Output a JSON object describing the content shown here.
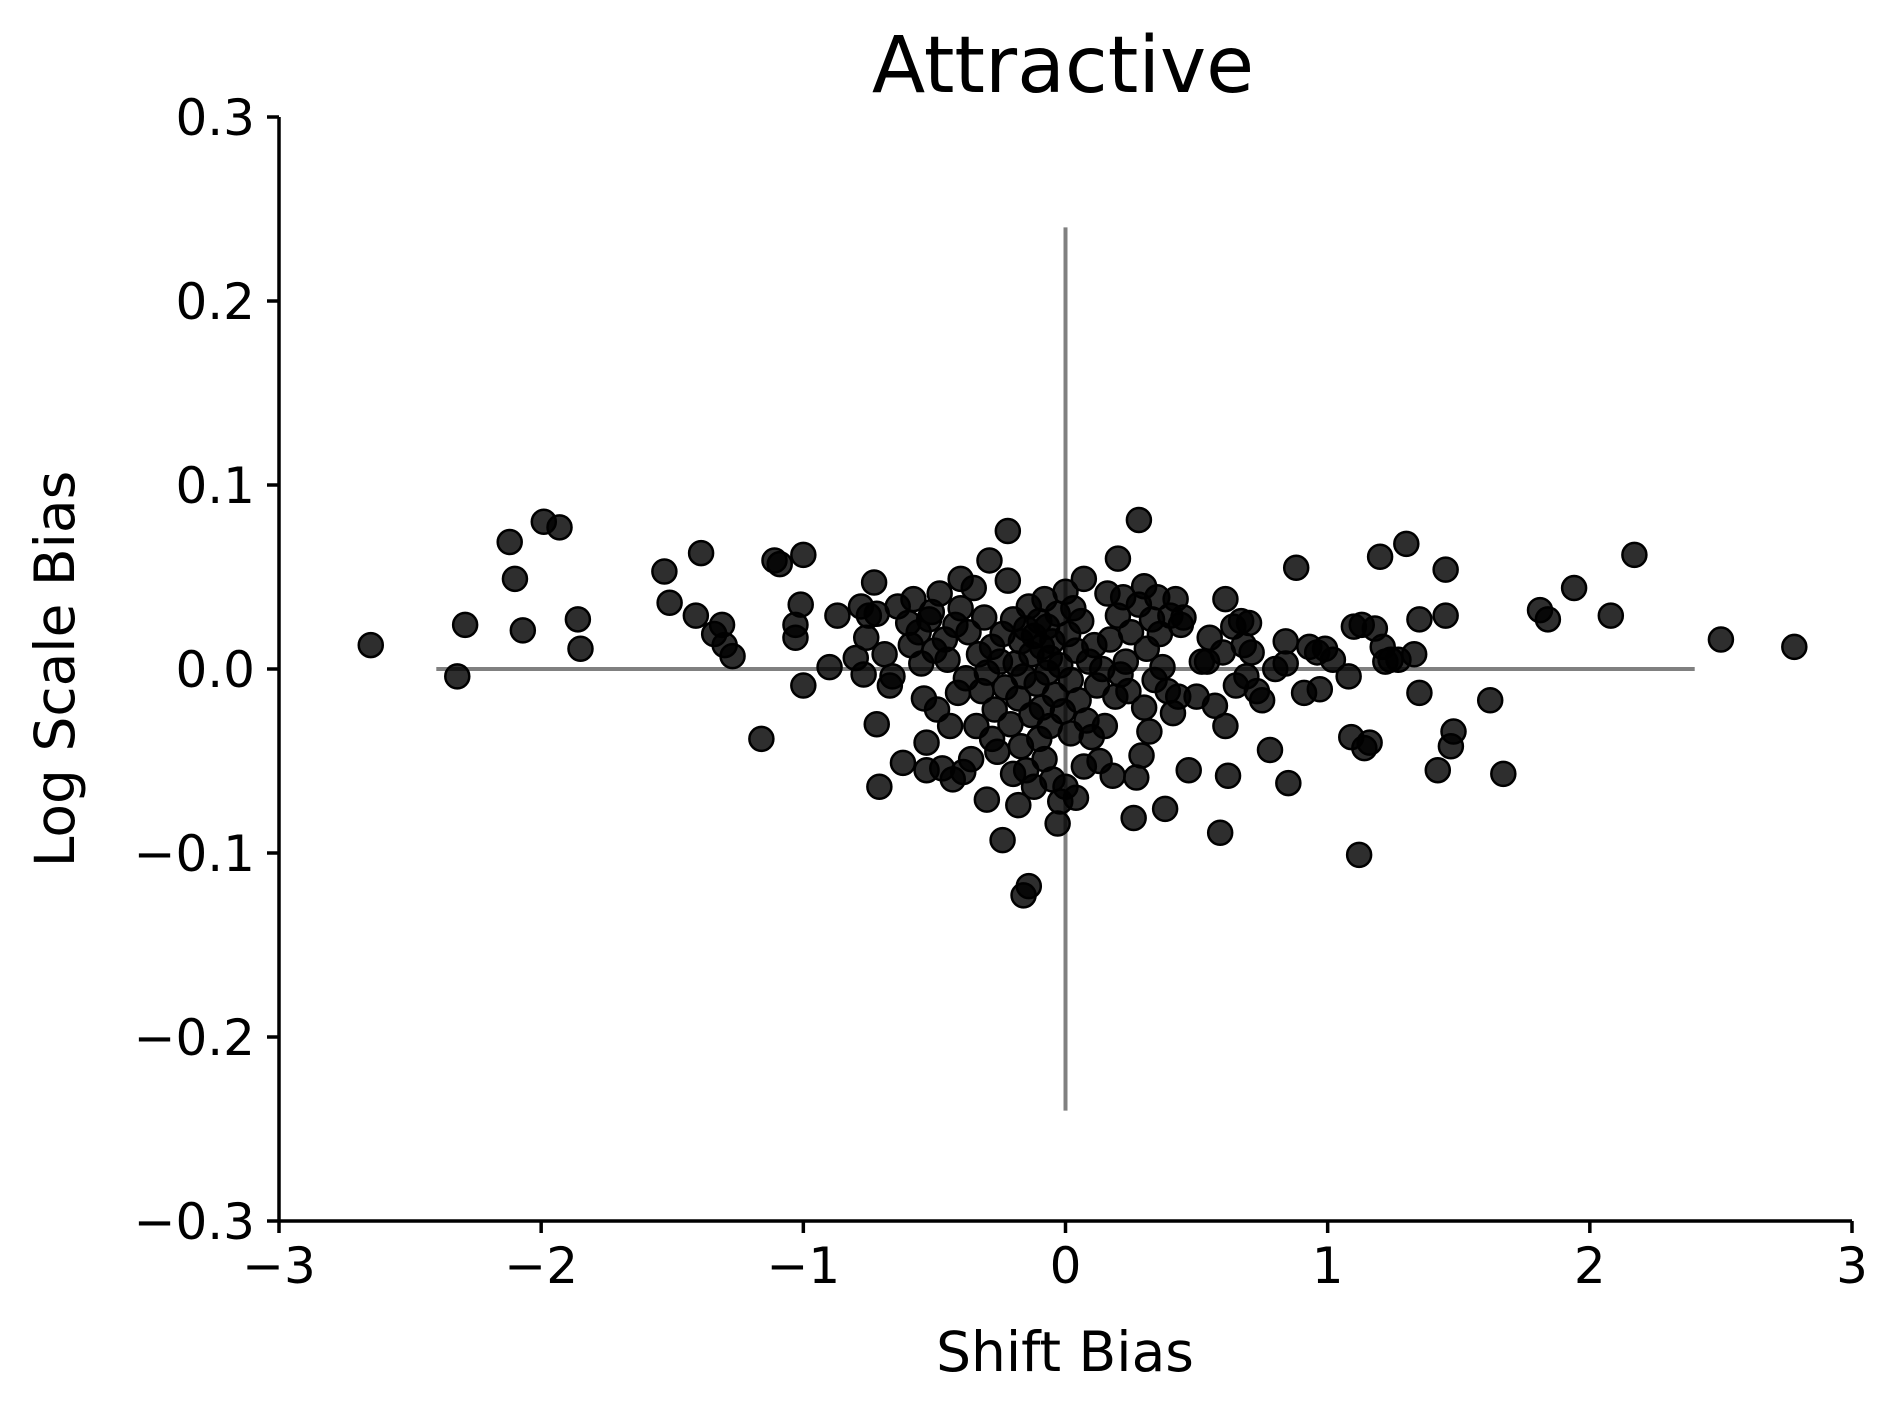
{
  "chart_data": {
    "type": "scatter",
    "title": "Attractive",
    "xlabel": "Shift Bias",
    "ylabel": "Log Scale Bias",
    "xlim": [
      -3,
      3
    ],
    "ylim": [
      -0.3,
      0.3
    ],
    "xticks": [
      -3,
      -2,
      -1,
      0,
      1,
      2,
      3
    ],
    "yticks": [
      -0.3,
      -0.2,
      -0.1,
      0.0,
      0.1,
      0.2,
      0.3
    ],
    "xtick_labels": [
      "−3",
      "−2",
      "−1",
      "0",
      "1",
      "2",
      "3"
    ],
    "ytick_labels": [
      "−0.3",
      "−0.2",
      "−0.1",
      "0.0",
      "0.1",
      "0.2",
      "0.3"
    ],
    "grid": false,
    "reference_lines": {
      "horizontal": {
        "y": 0,
        "x_range": [
          -2.4,
          2.4
        ],
        "color": "#808080"
      },
      "vertical": {
        "x": 0,
        "y_range": [
          -0.24,
          0.24
        ],
        "color": "#808080"
      }
    },
    "marker_color": "#000000",
    "points": [
      [
        -2.65,
        0.013
      ],
      [
        -2.32,
        -0.004
      ],
      [
        -2.29,
        0.024
      ],
      [
        -2.12,
        0.069
      ],
      [
        -2.1,
        0.049
      ],
      [
        -2.07,
        0.021
      ],
      [
        -1.99,
        0.08
      ],
      [
        -1.93,
        0.077
      ],
      [
        -1.86,
        0.027
      ],
      [
        -1.85,
        0.011
      ],
      [
        -1.53,
        0.053
      ],
      [
        -1.51,
        0.036
      ],
      [
        -1.41,
        0.029
      ],
      [
        -1.39,
        0.063
      ],
      [
        -1.34,
        0.019
      ],
      [
        -1.31,
        0.024
      ],
      [
        -1.3,
        0.013
      ],
      [
        -1.27,
        0.007
      ],
      [
        -1.16,
        -0.038
      ],
      [
        -1.11,
        0.059
      ],
      [
        -1.09,
        0.057
      ],
      [
        -1.03,
        0.017
      ],
      [
        -1.03,
        0.024
      ],
      [
        -1.01,
        0.035
      ],
      [
        -1.0,
        0.062
      ],
      [
        -1.0,
        -0.009
      ],
      [
        -0.9,
        0.001
      ],
      [
        -0.87,
        0.029
      ],
      [
        -0.8,
        0.006
      ],
      [
        -0.78,
        0.034
      ],
      [
        -0.77,
        -0.003
      ],
      [
        -0.76,
        0.017
      ],
      [
        -0.75,
        0.029
      ],
      [
        -0.73,
        0.047
      ],
      [
        -0.72,
        0.03
      ],
      [
        -0.72,
        -0.03
      ],
      [
        -0.71,
        -0.064
      ],
      [
        -0.69,
        0.008
      ],
      [
        -0.67,
        -0.009
      ],
      [
        -0.66,
        -0.004
      ],
      [
        -0.64,
        0.034
      ],
      [
        -0.62,
        -0.051
      ],
      [
        -0.6,
        0.025
      ],
      [
        -0.59,
        0.013
      ],
      [
        -0.58,
        0.038
      ],
      [
        -0.56,
        0.02
      ],
      [
        -0.55,
        0.003
      ],
      [
        -0.54,
        -0.016
      ],
      [
        -0.53,
        -0.055
      ],
      [
        -0.53,
        -0.04
      ],
      [
        -0.52,
        0.027
      ],
      [
        -0.51,
        0.031
      ],
      [
        -0.5,
        0.01
      ],
      [
        -0.49,
        -0.022
      ],
      [
        -0.48,
        0.041
      ],
      [
        -0.47,
        -0.054
      ],
      [
        -0.46,
        0.016
      ],
      [
        -0.45,
        0.005
      ],
      [
        -0.44,
        -0.031
      ],
      [
        -0.43,
        -0.06
      ],
      [
        -0.42,
        0.024
      ],
      [
        -0.41,
        -0.013
      ],
      [
        -0.4,
        0.049
      ],
      [
        -0.4,
        0.033
      ],
      [
        -0.39,
        -0.056
      ],
      [
        -0.38,
        -0.005
      ],
      [
        -0.37,
        0.02
      ],
      [
        -0.36,
        -0.049
      ],
      [
        -0.35,
        0.044
      ],
      [
        -0.34,
        -0.031
      ],
      [
        -0.33,
        0.008
      ],
      [
        -0.32,
        -0.012
      ],
      [
        -0.31,
        0.028
      ],
      [
        -0.3,
        -0.002
      ],
      [
        -0.3,
        -0.071
      ],
      [
        -0.29,
        0.059
      ],
      [
        -0.28,
        -0.038
      ],
      [
        -0.28,
        0.012
      ],
      [
        -0.27,
        -0.022
      ],
      [
        -0.26,
        -0.045
      ],
      [
        -0.25,
        0.004
      ],
      [
        -0.24,
        -0.093
      ],
      [
        -0.24,
        0.019
      ],
      [
        -0.23,
        -0.01
      ],
      [
        -0.22,
        0.048
      ],
      [
        -0.22,
        0.075
      ],
      [
        -0.21,
        -0.03
      ],
      [
        -0.2,
        0.027
      ],
      [
        -0.2,
        -0.057
      ],
      [
        -0.19,
        0.003
      ],
      [
        -0.18,
        -0.016
      ],
      [
        -0.18,
        -0.074
      ],
      [
        -0.17,
        0.015
      ],
      [
        -0.17,
        -0.042
      ],
      [
        -0.16,
        -0.004
      ],
      [
        -0.16,
        -0.123
      ],
      [
        -0.15,
        0.022
      ],
      [
        -0.15,
        -0.055
      ],
      [
        -0.14,
        0.034
      ],
      [
        -0.14,
        -0.118
      ],
      [
        -0.13,
        -0.025
      ],
      [
        -0.13,
        0.008
      ],
      [
        -0.12,
        0.018
      ],
      [
        -0.12,
        -0.064
      ],
      [
        -0.11,
        -0.008
      ],
      [
        -0.1,
        0.026
      ],
      [
        -0.1,
        -0.038
      ],
      [
        -0.09,
        0.012
      ],
      [
        -0.09,
        -0.021
      ],
      [
        -0.08,
        0.038
      ],
      [
        -0.08,
        -0.049
      ],
      [
        -0.07,
        -0.002
      ],
      [
        -0.07,
        0.023
      ],
      [
        -0.06,
        -0.031
      ],
      [
        -0.06,
        0.006
      ],
      [
        -0.05,
        -0.06
      ],
      [
        -0.05,
        0.015
      ],
      [
        -0.04,
        -0.014
      ],
      [
        -0.03,
        0.03
      ],
      [
        -0.03,
        -0.084
      ],
      [
        -0.02,
        -0.072
      ],
      [
        -0.02,
        0.002
      ],
      [
        -0.01,
        -0.023
      ],
      [
        0.0,
        0.042
      ],
      [
        0.0,
        -0.064
      ],
      [
        0.01,
        0.019
      ],
      [
        0.02,
        -0.006
      ],
      [
        0.02,
        -0.035
      ],
      [
        0.03,
        0.033
      ],
      [
        0.04,
        -0.07
      ],
      [
        0.04,
        0.01
      ],
      [
        0.05,
        -0.017
      ],
      [
        0.06,
        0.026
      ],
      [
        0.07,
        -0.053
      ],
      [
        0.07,
        0.049
      ],
      [
        0.08,
        -0.028
      ],
      [
        0.09,
        0.004
      ],
      [
        0.1,
        -0.037
      ],
      [
        0.11,
        0.013
      ],
      [
        0.12,
        -0.009
      ],
      [
        0.13,
        -0.05
      ],
      [
        0.14,
        0.0
      ],
      [
        0.15,
        -0.031
      ],
      [
        0.16,
        0.041
      ],
      [
        0.17,
        0.016
      ],
      [
        0.18,
        -0.058
      ],
      [
        0.19,
        -0.015
      ],
      [
        0.2,
        0.06
      ],
      [
        0.2,
        0.029
      ],
      [
        0.21,
        -0.003
      ],
      [
        0.22,
        0.039
      ],
      [
        0.23,
        0.004
      ],
      [
        0.24,
        -0.012
      ],
      [
        0.25,
        0.02
      ],
      [
        0.26,
        -0.081
      ],
      [
        0.27,
        -0.059
      ],
      [
        0.28,
        0.035
      ],
      [
        0.28,
        0.081
      ],
      [
        0.29,
        -0.047
      ],
      [
        0.3,
        0.045
      ],
      [
        0.3,
        -0.021
      ],
      [
        0.31,
        0.011
      ],
      [
        0.32,
        -0.034
      ],
      [
        0.33,
        0.027
      ],
      [
        0.34,
        -0.006
      ],
      [
        0.35,
        0.039
      ],
      [
        0.36,
        0.019
      ],
      [
        0.37,
        0.001
      ],
      [
        0.38,
        -0.076
      ],
      [
        0.39,
        -0.012
      ],
      [
        0.4,
        0.029
      ],
      [
        0.41,
        -0.024
      ],
      [
        0.42,
        0.038
      ],
      [
        0.43,
        -0.015
      ],
      [
        0.44,
        0.024
      ],
      [
        0.45,
        0.028
      ],
      [
        0.47,
        -0.055
      ],
      [
        0.5,
        -0.015
      ],
      [
        0.52,
        0.004
      ],
      [
        0.54,
        0.004
      ],
      [
        0.55,
        0.017
      ],
      [
        0.57,
        -0.02
      ],
      [
        0.59,
        -0.089
      ],
      [
        0.6,
        0.009
      ],
      [
        0.61,
        0.038
      ],
      [
        0.61,
        -0.031
      ],
      [
        0.62,
        -0.058
      ],
      [
        0.64,
        0.023
      ],
      [
        0.65,
        -0.009
      ],
      [
        0.67,
        0.026
      ],
      [
        0.68,
        0.013
      ],
      [
        0.69,
        -0.004
      ],
      [
        0.7,
        0.025
      ],
      [
        0.71,
        0.009
      ],
      [
        0.73,
        -0.012
      ],
      [
        0.75,
        -0.017
      ],
      [
        0.78,
        -0.044
      ],
      [
        0.8,
        0.0
      ],
      [
        0.84,
        0.015
      ],
      [
        0.84,
        0.003
      ],
      [
        0.85,
        -0.062
      ],
      [
        0.88,
        0.055
      ],
      [
        0.91,
        -0.013
      ],
      [
        0.93,
        0.012
      ],
      [
        0.96,
        0.009
      ],
      [
        0.97,
        -0.011
      ],
      [
        0.99,
        0.011
      ],
      [
        1.02,
        0.005
      ],
      [
        1.08,
        -0.004
      ],
      [
        1.09,
        -0.037
      ],
      [
        1.1,
        0.023
      ],
      [
        1.12,
        -0.101
      ],
      [
        1.13,
        0.024
      ],
      [
        1.14,
        -0.043
      ],
      [
        1.16,
        -0.04
      ],
      [
        1.18,
        0.022
      ],
      [
        1.2,
        0.061
      ],
      [
        1.21,
        0.012
      ],
      [
        1.22,
        0.004
      ],
      [
        1.24,
        0.005
      ],
      [
        1.27,
        0.005
      ],
      [
        1.3,
        0.068
      ],
      [
        1.33,
        0.008
      ],
      [
        1.35,
        -0.013
      ],
      [
        1.35,
        0.027
      ],
      [
        1.42,
        -0.055
      ],
      [
        1.45,
        0.029
      ],
      [
        1.45,
        0.054
      ],
      [
        1.47,
        -0.042
      ],
      [
        1.48,
        -0.034
      ],
      [
        1.62,
        -0.017
      ],
      [
        1.67,
        -0.057
      ],
      [
        1.81,
        0.032
      ],
      [
        1.84,
        0.027
      ],
      [
        1.94,
        0.044
      ],
      [
        2.08,
        0.029
      ],
      [
        2.17,
        0.062
      ],
      [
        2.5,
        0.016
      ],
      [
        2.78,
        0.012
      ]
    ]
  }
}
